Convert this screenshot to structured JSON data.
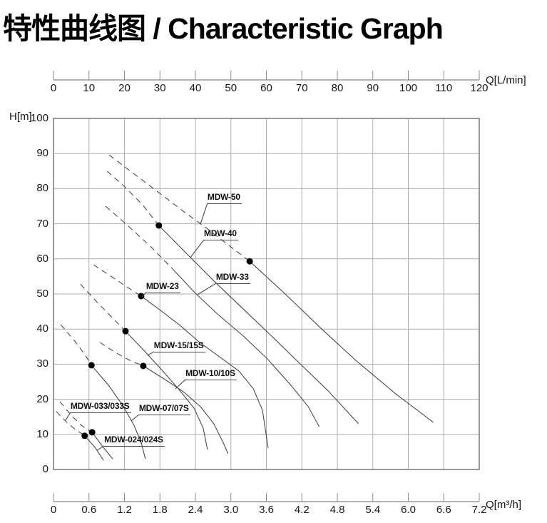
{
  "title": "特性曲线图 / Characteristic Graph",
  "chart_data": {
    "type": "line",
    "title": "特性曲线图 / Characteristic Graph",
    "grid": true,
    "legend_position": "inline-labels",
    "axes": {
      "top": {
        "label": "Q[L/min]",
        "range": [
          0,
          120
        ],
        "ticks": [
          "0",
          "10",
          "20",
          "30",
          "40",
          "50",
          "60",
          "70",
          "80",
          "90",
          "100",
          "110",
          "120"
        ]
      },
      "bottom": {
        "label": "Q[m³/h]",
        "range": [
          0,
          7.2
        ],
        "ticks": [
          "0",
          "0.6",
          "1.2",
          "1.8",
          "2.4",
          "3.0",
          "3.6",
          "4.2",
          "4.8",
          "5.4",
          "6.0",
          "6.6",
          "7.2"
        ]
      },
      "left": {
        "label": "H[m]",
        "range": [
          0,
          100
        ],
        "ticks": [
          "100",
          "90",
          "80",
          "70",
          "60",
          "50",
          "40",
          "30",
          "20",
          "10",
          "0"
        ]
      }
    },
    "units": {
      "flow_top": "L/min",
      "flow_bottom": "m3/h",
      "head": "m"
    },
    "series": [
      {
        "label": "MDW-024/024S",
        "duty_point": [
          8.8,
          9.6
        ],
        "dashed_points": [
          [
            0.8,
            16.5
          ],
          [
            3.8,
            13.4
          ],
          [
            6.4,
            11.2
          ],
          [
            8.0,
            10.2
          ],
          [
            8.8,
            9.6
          ]
        ],
        "solid_points": [
          [
            8.8,
            9.6
          ],
          [
            11.7,
            6.3
          ],
          [
            14.1,
            2.6
          ]
        ],
        "label_at": [
          14.3,
          10.0
        ],
        "leader_to": [
          12.3,
          5.5
        ]
      },
      {
        "label": "MDW-033/033S",
        "duty_point": [
          10.9,
          10.6
        ],
        "dashed_points": [
          [
            1.8,
            19.3
          ],
          [
            4.8,
            15.7
          ],
          [
            7.8,
            12.6
          ],
          [
            9.8,
            11.2
          ],
          [
            10.9,
            10.6
          ]
        ],
        "solid_points": [
          [
            10.9,
            10.6
          ],
          [
            13.7,
            6.7
          ],
          [
            16.7,
            3.0
          ]
        ],
        "label_at": [
          4.8,
          19.5
        ],
        "leader_to": [
          3.4,
          14.0
        ]
      },
      {
        "label": "MDW-07/07S",
        "duty_point": [
          10.7,
          29.7
        ],
        "dashed_points": [
          [
            2.0,
            41.3
          ],
          [
            6.0,
            36.6
          ],
          [
            9.0,
            32.5
          ],
          [
            10.7,
            29.7
          ]
        ],
        "solid_points": [
          [
            10.7,
            29.7
          ],
          [
            15.5,
            24.0
          ],
          [
            19.5,
            18.3
          ],
          [
            22.7,
            12.6
          ],
          [
            24.7,
            7.7
          ],
          [
            25.9,
            3.0
          ]
        ],
        "label_at": [
          24.1,
          18.9
        ],
        "leader_to": [
          21.9,
          13.8
        ]
      },
      {
        "label": "MDW-10/10S",
        "duty_point": [
          25.3,
          29.5
        ],
        "dashed_points": [
          [
            13.1,
            36.2
          ],
          [
            17.5,
            33.3
          ],
          [
            21.9,
            30.9
          ],
          [
            25.3,
            29.5
          ]
        ],
        "solid_points": [
          [
            25.3,
            29.5
          ],
          [
            31.2,
            25.8
          ],
          [
            36.8,
            22.0
          ],
          [
            41.6,
            17.7
          ],
          [
            45.2,
            13.0
          ],
          [
            47.8,
            7.7
          ],
          [
            49.2,
            4.5
          ]
        ],
        "label_at": [
          37.2,
          28.9
        ],
        "leader_to": [
          34.4,
          23.0
        ]
      },
      {
        "label": "MDW-15/15S",
        "duty_point": [
          20.3,
          39.4
        ],
        "dashed_points": [
          [
            7.6,
            52.8
          ],
          [
            12.7,
            47.2
          ],
          [
            17.1,
            42.7
          ],
          [
            20.3,
            39.4
          ]
        ],
        "solid_points": [
          [
            20.3,
            39.4
          ],
          [
            25.5,
            33.9
          ],
          [
            30.4,
            28.5
          ],
          [
            35.2,
            23.0
          ],
          [
            39.6,
            17.5
          ],
          [
            42.2,
            11.8
          ],
          [
            43.4,
            5.7
          ]
        ],
        "label_at": [
          28.3,
          36.8
        ],
        "leader_to": [
          26.5,
          32.5
        ]
      },
      {
        "label": "MDW-23",
        "duty_point": [
          24.7,
          49.4
        ],
        "dashed_points": [
          [
            11.3,
            58.3
          ],
          [
            16.1,
            55.1
          ],
          [
            20.7,
            52.0
          ],
          [
            24.7,
            49.4
          ]
        ],
        "solid_points": [
          [
            24.7,
            49.4
          ],
          [
            30.2,
            45.3
          ],
          [
            35.6,
            41.1
          ],
          [
            41.2,
            36.2
          ],
          [
            46.8,
            32.1
          ],
          [
            52.3,
            28.0
          ],
          [
            56.3,
            23.0
          ],
          [
            58.9,
            16.9
          ],
          [
            60.5,
            6.1
          ]
        ],
        "label_at": [
          26.1,
          53.7
        ],
        "leader_to": [
          24.9,
          49.2
        ]
      },
      {
        "label": "MDW-33",
        "duty_point": null,
        "dashed_points": [
          [
            14.7,
            75.0
          ],
          [
            21.1,
            69.3
          ],
          [
            27.5,
            63.4
          ],
          [
            33.8,
            56.9
          ]
        ],
        "solid_points": [
          [
            33.8,
            56.9
          ],
          [
            39.8,
            50.4
          ],
          [
            46.2,
            44.3
          ],
          [
            53.3,
            38.2
          ],
          [
            60.3,
            31.5
          ],
          [
            66.9,
            24.0
          ],
          [
            71.8,
            17.9
          ],
          [
            74.9,
            12.2
          ]
        ],
        "label_at": [
          45.8,
          56.3
        ],
        "leader_to": [
          40.6,
          49.8
        ]
      },
      {
        "label": "MDW-40",
        "duty_point": [
          29.7,
          69.5
        ],
        "dashed_points": [
          [
            15.1,
            85.0
          ],
          [
            20.1,
            80.5
          ],
          [
            25.1,
            75.4
          ],
          [
            29.7,
            69.5
          ]
        ],
        "solid_points": [
          [
            29.7,
            69.5
          ],
          [
            37.2,
            61.8
          ],
          [
            45.2,
            53.7
          ],
          [
            53.3,
            45.9
          ],
          [
            61.3,
            38.2
          ],
          [
            69.3,
            30.3
          ],
          [
            77.4,
            22.4
          ],
          [
            86.0,
            13.0
          ]
        ],
        "label_at": [
          42.4,
          68.7
        ],
        "leader_to": [
          38.6,
          60.4
        ]
      },
      {
        "label": "MDW-50",
        "duty_point": [
          55.3,
          59.3
        ],
        "dashed_points": [
          [
            15.7,
            89.6
          ],
          [
            23.1,
            83.9
          ],
          [
            30.2,
            78.5
          ],
          [
            36.8,
            73.4
          ],
          [
            43.2,
            68.7
          ],
          [
            49.2,
            64.0
          ],
          [
            55.3,
            59.3
          ]
        ],
        "solid_points": [
          [
            55.3,
            59.3
          ],
          [
            65.3,
            50.0
          ],
          [
            75.4,
            40.2
          ],
          [
            85.4,
            30.9
          ],
          [
            96.5,
            21.5
          ],
          [
            107.1,
            13.4
          ]
        ],
        "label_at": [
          43.4,
          79.1
        ],
        "leader_to": [
          41.4,
          69.9
        ]
      }
    ]
  }
}
